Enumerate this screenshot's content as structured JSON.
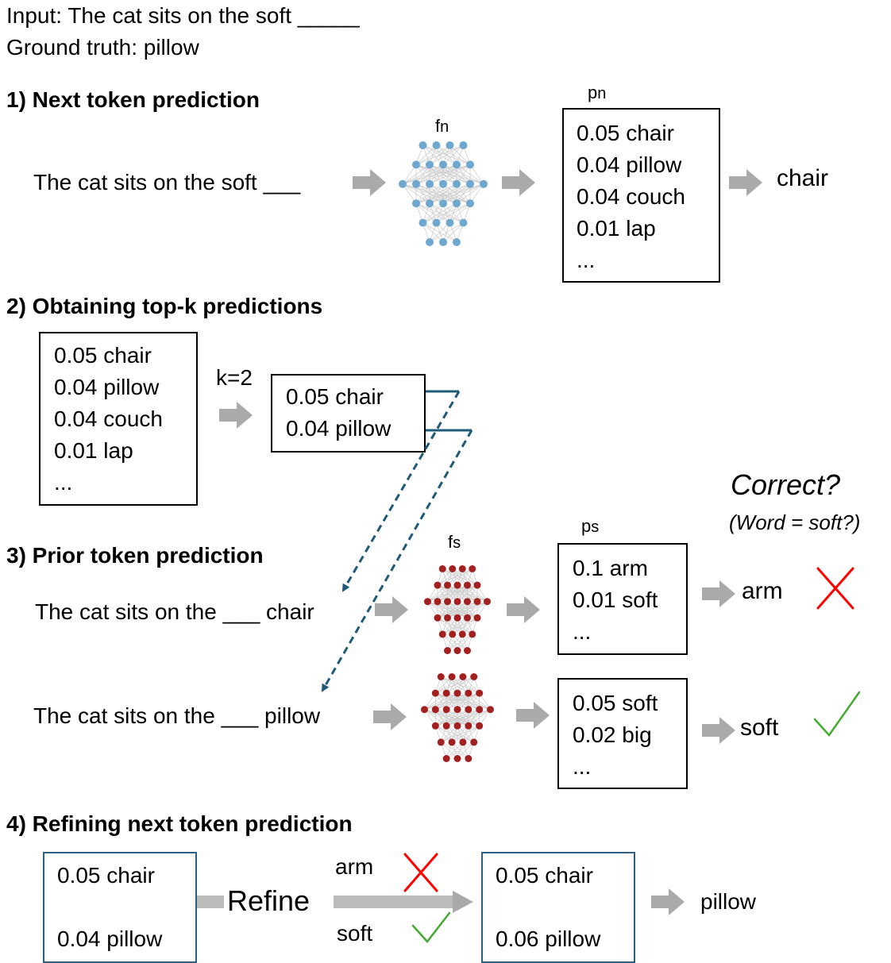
{
  "header": {
    "input": "Input: The cat sits on the soft _____",
    "ground_truth": "Ground truth: pillow"
  },
  "step1": {
    "heading": "1) Next token prediction",
    "sentence": "The cat sits on the soft ___",
    "model_label": "f",
    "model_sub": "n",
    "dist_label": "p",
    "dist_sub": "n",
    "dist": [
      "0.05 chair",
      "0.04 pillow",
      "0.04 couch",
      "0.01 lap",
      "..."
    ],
    "output": "chair"
  },
  "step2": {
    "heading": "2) Obtaining top-k predictions",
    "dist": [
      "0.05 chair",
      "0.04 pillow",
      "0.04 couch",
      "0.01 lap",
      "..."
    ],
    "k_label": "k=2",
    "topk": [
      "0.05 chair",
      "0.04 pillow"
    ]
  },
  "step3": {
    "heading": "3) Prior token prediction",
    "question": "Correct?",
    "question_sub": "(Word = soft?)",
    "model_label": "f",
    "model_sub": "s",
    "dist_label": "p",
    "dist_sub": "s",
    "row1": {
      "sentence": "The cat sits on the  ___ chair",
      "dist": [
        "0.1 arm",
        "0.01 soft",
        "..."
      ],
      "output": "arm",
      "verdict": "incorrect"
    },
    "row2": {
      "sentence": "The cat sits on the ___ pillow",
      "dist": [
        "0.05 soft",
        "0.02 big",
        "..."
      ],
      "output": "soft",
      "verdict": "correct"
    }
  },
  "step4": {
    "heading": "4) Refining next token prediction",
    "before": [
      "0.05 chair",
      "0.04 pillow"
    ],
    "refine_label": "Refine",
    "wrong_word": "arm",
    "right_word": "soft",
    "after": [
      "0.05 chair",
      "0.06 pillow"
    ],
    "output": "pillow"
  },
  "colors": {
    "arrow": "#aaaaaa",
    "link": "#1f5a78",
    "net_blue": "#6fa8cf",
    "net_red": "#a32020",
    "cross": "#ff0000",
    "check": "#44aa33",
    "box_blue": "#2e5f7e"
  }
}
